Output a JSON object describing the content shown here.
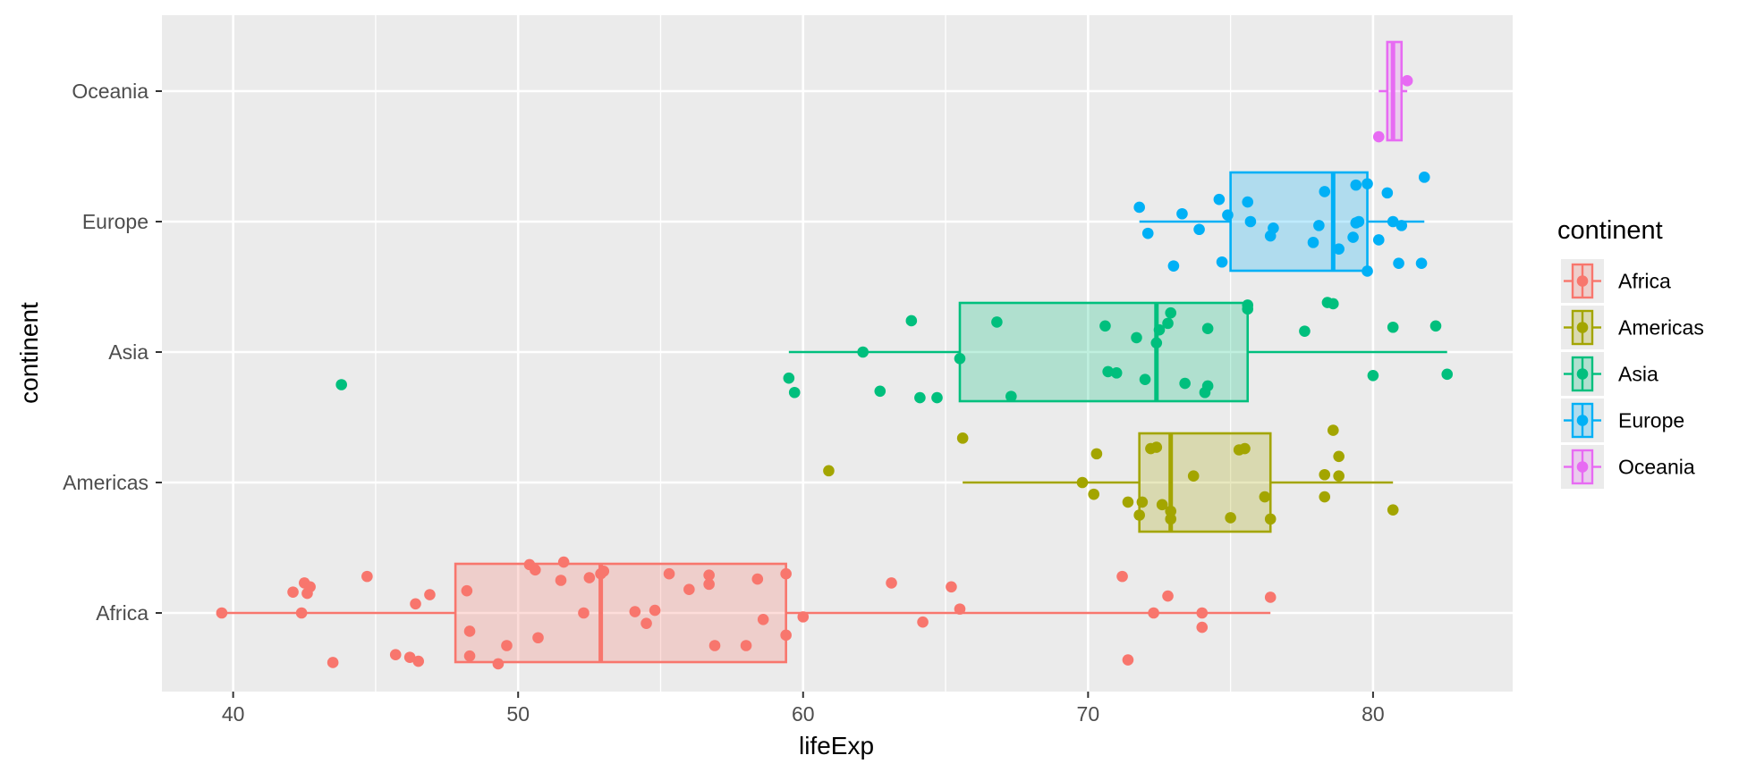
{
  "chart_data": {
    "type": "boxplot",
    "orientation": "horizontal",
    "xlabel": "lifeExp",
    "ylabel": "continent",
    "xlim": [
      37.5,
      84.9
    ],
    "x_ticks": [
      40,
      50,
      60,
      70,
      80
    ],
    "x_tick_labels": [
      "40",
      "50",
      "60",
      "70",
      "80"
    ],
    "categories": [
      "Africa",
      "Americas",
      "Asia",
      "Europe",
      "Oceania"
    ],
    "legend": {
      "title": "continent",
      "position": "right",
      "entries": [
        "Africa",
        "Americas",
        "Asia",
        "Europe",
        "Oceania"
      ]
    },
    "grid": true,
    "series": [
      {
        "name": "Africa",
        "color": "#F8766D",
        "box": {
          "min": 39.6,
          "q1": 47.8,
          "median": 52.9,
          "q3": 59.4,
          "max": 76.4
        },
        "points": [
          [
            39.6,
            0.0
          ],
          [
            42.1,
            0.16
          ],
          [
            42.4,
            0.0
          ],
          [
            42.5,
            0.23
          ],
          [
            42.6,
            0.15
          ],
          [
            42.7,
            0.2
          ],
          [
            43.5,
            -0.38
          ],
          [
            44.7,
            0.28
          ],
          [
            45.7,
            -0.32
          ],
          [
            46.2,
            -0.34
          ],
          [
            46.4,
            0.07
          ],
          [
            46.5,
            -0.37
          ],
          [
            46.9,
            0.14
          ],
          [
            48.2,
            0.17
          ],
          [
            48.3,
            -0.14
          ],
          [
            48.3,
            -0.33
          ],
          [
            49.3,
            -0.39
          ],
          [
            49.6,
            -0.25
          ],
          [
            50.4,
            0.37
          ],
          [
            50.6,
            0.33
          ],
          [
            50.7,
            -0.19
          ],
          [
            51.5,
            0.25
          ],
          [
            51.6,
            0.39
          ],
          [
            52.3,
            0.0
          ],
          [
            52.5,
            0.27
          ],
          [
            52.9,
            0.3
          ],
          [
            53.0,
            0.32
          ],
          [
            54.1,
            0.01
          ],
          [
            54.5,
            -0.08
          ],
          [
            54.8,
            0.02
          ],
          [
            55.3,
            0.3
          ],
          [
            56.0,
            0.18
          ],
          [
            56.7,
            0.22
          ],
          [
            56.7,
            0.29
          ],
          [
            56.9,
            -0.25
          ],
          [
            58.0,
            -0.25
          ],
          [
            58.4,
            0.26
          ],
          [
            58.6,
            -0.05
          ],
          [
            59.4,
            0.3
          ],
          [
            59.4,
            -0.17
          ],
          [
            60.0,
            -0.03
          ],
          [
            63.1,
            0.23
          ],
          [
            64.2,
            -0.07
          ],
          [
            65.2,
            0.2
          ],
          [
            65.5,
            0.03
          ],
          [
            71.2,
            0.28
          ],
          [
            71.4,
            -0.36
          ],
          [
            72.3,
            0.0
          ],
          [
            72.8,
            0.13
          ],
          [
            74.0,
            0.0
          ],
          [
            74.0,
            -0.11
          ],
          [
            76.4,
            0.12
          ]
        ]
      },
      {
        "name": "Americas",
        "color": "#A3A500",
        "box": {
          "min": 65.6,
          "q1": 71.8,
          "median": 72.9,
          "q3": 76.4,
          "max": 80.7
        },
        "points": [
          [
            60.9,
            0.09
          ],
          [
            65.6,
            0.34
          ],
          [
            69.8,
            0.0
          ],
          [
            70.2,
            -0.09
          ],
          [
            70.3,
            0.22
          ],
          [
            71.4,
            -0.15
          ],
          [
            71.8,
            -0.25
          ],
          [
            71.9,
            -0.15
          ],
          [
            72.2,
            0.26
          ],
          [
            72.4,
            0.27
          ],
          [
            72.6,
            -0.17
          ],
          [
            72.9,
            -0.22
          ],
          [
            72.9,
            -0.28
          ],
          [
            73.7,
            0.05
          ],
          [
            75.0,
            -0.27
          ],
          [
            75.3,
            0.25
          ],
          [
            75.5,
            0.26
          ],
          [
            76.2,
            -0.11
          ],
          [
            76.4,
            -0.28
          ],
          [
            78.3,
            -0.11
          ],
          [
            78.3,
            0.06
          ],
          [
            78.6,
            0.4
          ],
          [
            78.8,
            0.2
          ],
          [
            78.8,
            0.05
          ],
          [
            80.7,
            -0.21
          ]
        ]
      },
      {
        "name": "Asia",
        "color": "#00BF7D",
        "box": {
          "min": 59.5,
          "q1": 65.5,
          "median": 72.4,
          "q3": 75.6,
          "max": 82.6
        },
        "points": [
          [
            43.8,
            -0.25
          ],
          [
            59.5,
            -0.2
          ],
          [
            59.7,
            -0.31
          ],
          [
            62.1,
            0.0
          ],
          [
            62.7,
            -0.3
          ],
          [
            63.8,
            0.24
          ],
          [
            64.1,
            -0.35
          ],
          [
            64.7,
            -0.35
          ],
          [
            65.5,
            -0.05
          ],
          [
            66.8,
            0.23
          ],
          [
            67.3,
            -0.34
          ],
          [
            70.6,
            0.2
          ],
          [
            70.7,
            -0.15
          ],
          [
            71.0,
            -0.16
          ],
          [
            71.7,
            0.11
          ],
          [
            72.0,
            -0.21
          ],
          [
            72.4,
            0.07
          ],
          [
            72.5,
            0.17
          ],
          [
            72.8,
            0.22
          ],
          [
            72.9,
            0.3
          ],
          [
            73.4,
            -0.24
          ],
          [
            74.1,
            -0.31
          ],
          [
            74.2,
            -0.26
          ],
          [
            74.2,
            0.18
          ],
          [
            75.6,
            0.36
          ],
          [
            75.6,
            0.33
          ],
          [
            77.6,
            0.16
          ],
          [
            78.4,
            0.38
          ],
          [
            78.6,
            0.37
          ],
          [
            80.0,
            -0.18
          ],
          [
            80.7,
            0.19
          ],
          [
            82.2,
            0.2
          ],
          [
            82.6,
            -0.17
          ]
        ]
      },
      {
        "name": "Europe",
        "color": "#00B0F6",
        "box": {
          "min": 71.8,
          "q1": 75.0,
          "median": 78.6,
          "q3": 79.8,
          "max": 81.8
        },
        "points": [
          [
            71.8,
            0.11
          ],
          [
            72.1,
            -0.09
          ],
          [
            73.0,
            -0.34
          ],
          [
            73.3,
            0.06
          ],
          [
            73.9,
            -0.06
          ],
          [
            74.6,
            0.17
          ],
          [
            74.7,
            -0.31
          ],
          [
            74.9,
            0.05
          ],
          [
            75.6,
            0.15
          ],
          [
            75.7,
            0.0
          ],
          [
            76.4,
            -0.11
          ],
          [
            76.5,
            -0.05
          ],
          [
            77.9,
            -0.16
          ],
          [
            78.1,
            -0.03
          ],
          [
            78.3,
            0.23
          ],
          [
            78.8,
            -0.21
          ],
          [
            79.3,
            -0.12
          ],
          [
            79.4,
            -0.01
          ],
          [
            79.4,
            0.28
          ],
          [
            79.5,
            0.0
          ],
          [
            79.8,
            -0.38
          ],
          [
            79.8,
            0.29
          ],
          [
            80.2,
            -0.14
          ],
          [
            80.5,
            0.22
          ],
          [
            80.7,
            0.0
          ],
          [
            80.9,
            -0.32
          ],
          [
            81.0,
            -0.03
          ],
          [
            81.7,
            -0.32
          ],
          [
            81.8,
            0.34
          ]
        ]
      },
      {
        "name": "Oceania",
        "color": "#E76BF3",
        "box": {
          "min": 80.2,
          "q1": 80.5,
          "median": 80.7,
          "q3": 81.0,
          "max": 81.2
        },
        "points": [
          [
            80.2,
            -0.35
          ],
          [
            81.2,
            0.08
          ]
        ]
      }
    ]
  }
}
